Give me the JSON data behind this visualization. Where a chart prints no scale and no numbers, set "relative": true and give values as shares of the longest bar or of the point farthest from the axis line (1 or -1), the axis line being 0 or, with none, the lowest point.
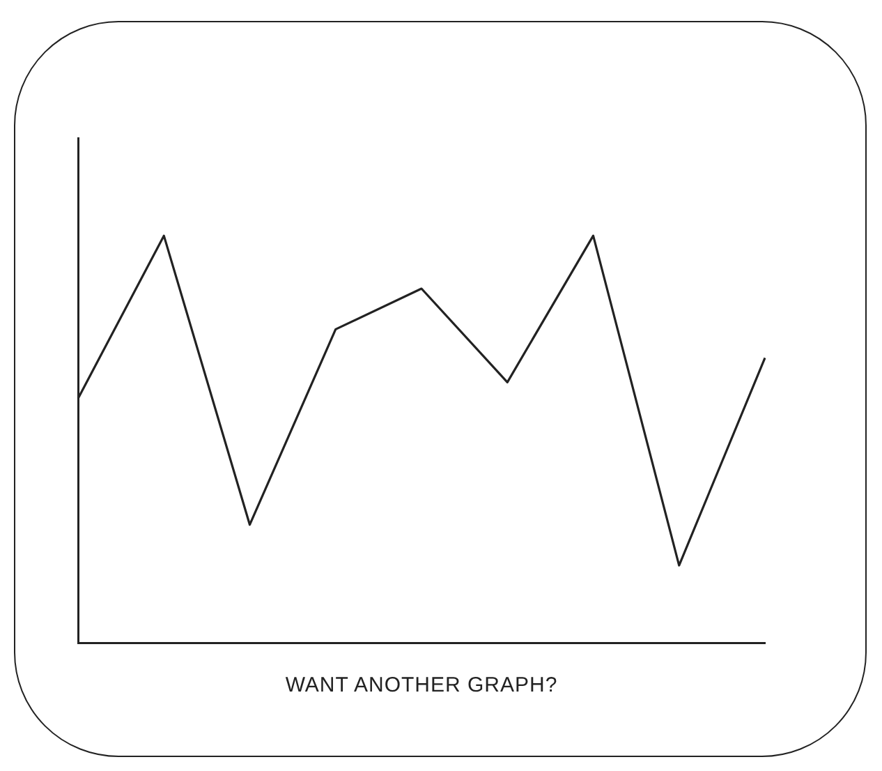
{
  "chart_data": {
    "type": "line",
    "relative": true,
    "xlabel": "WANT ANOTHER GRAPH?",
    "categories": [
      null,
      null,
      null,
      null,
      null,
      null,
      null,
      null,
      null
    ],
    "series": [
      {
        "color": "#222222",
        "values": [
          0.6,
          1,
          0.29,
          0.77,
          0.87,
          0.64,
          1,
          0.19,
          0.7
        ]
      }
    ],
    "grid": false,
    "legend": false,
    "marker": "none",
    "line_style": "solid"
  }
}
